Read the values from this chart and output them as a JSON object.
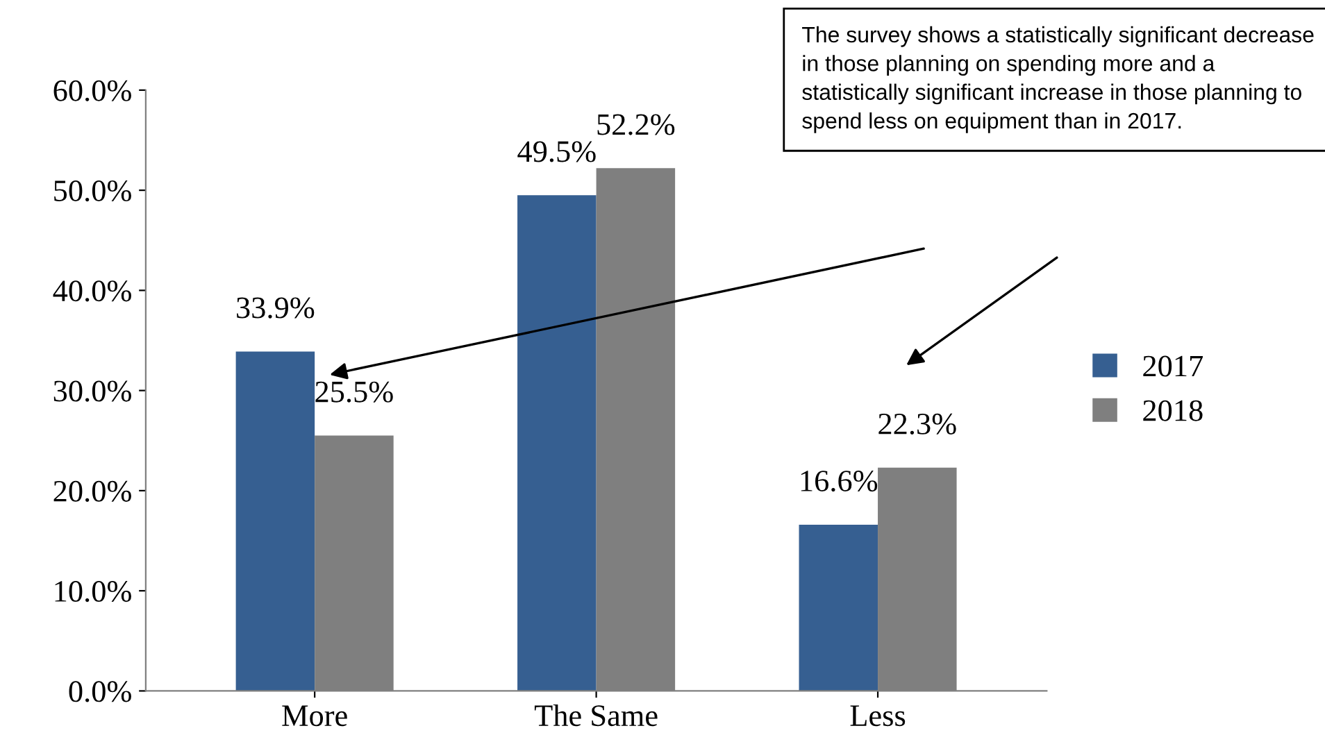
{
  "chart_data": {
    "type": "bar",
    "categories": [
      "More",
      "The Same",
      "Less"
    ],
    "series": [
      {
        "name": "2017",
        "color": "#365f91",
        "values": [
          33.9,
          49.5,
          16.6
        ],
        "value_labels": [
          "33.9%",
          "49.5%",
          "16.6%"
        ]
      },
      {
        "name": "2018",
        "color": "#7f7f7f",
        "values": [
          25.5,
          52.2,
          22.3
        ],
        "value_labels": [
          "25.5%",
          "52.2%",
          "22.3%"
        ]
      }
    ],
    "ylim": [
      0,
      60
    ],
    "yticks": [
      {
        "value": 0,
        "label": "0.0%"
      },
      {
        "value": 10,
        "label": "10.0%"
      },
      {
        "value": 20,
        "label": "20.0%"
      },
      {
        "value": 30,
        "label": "30.0%"
      },
      {
        "value": 40,
        "label": "40.0%"
      },
      {
        "value": 50,
        "label": "50.0%"
      },
      {
        "value": 60,
        "label": "60.0%"
      }
    ],
    "annotations": [
      "The survey shows a statistically significant decrease in those planning on spending more and a statistically significant increase in those planning to spend less on equipment than in 2017."
    ],
    "grid": false,
    "legend": "right"
  }
}
